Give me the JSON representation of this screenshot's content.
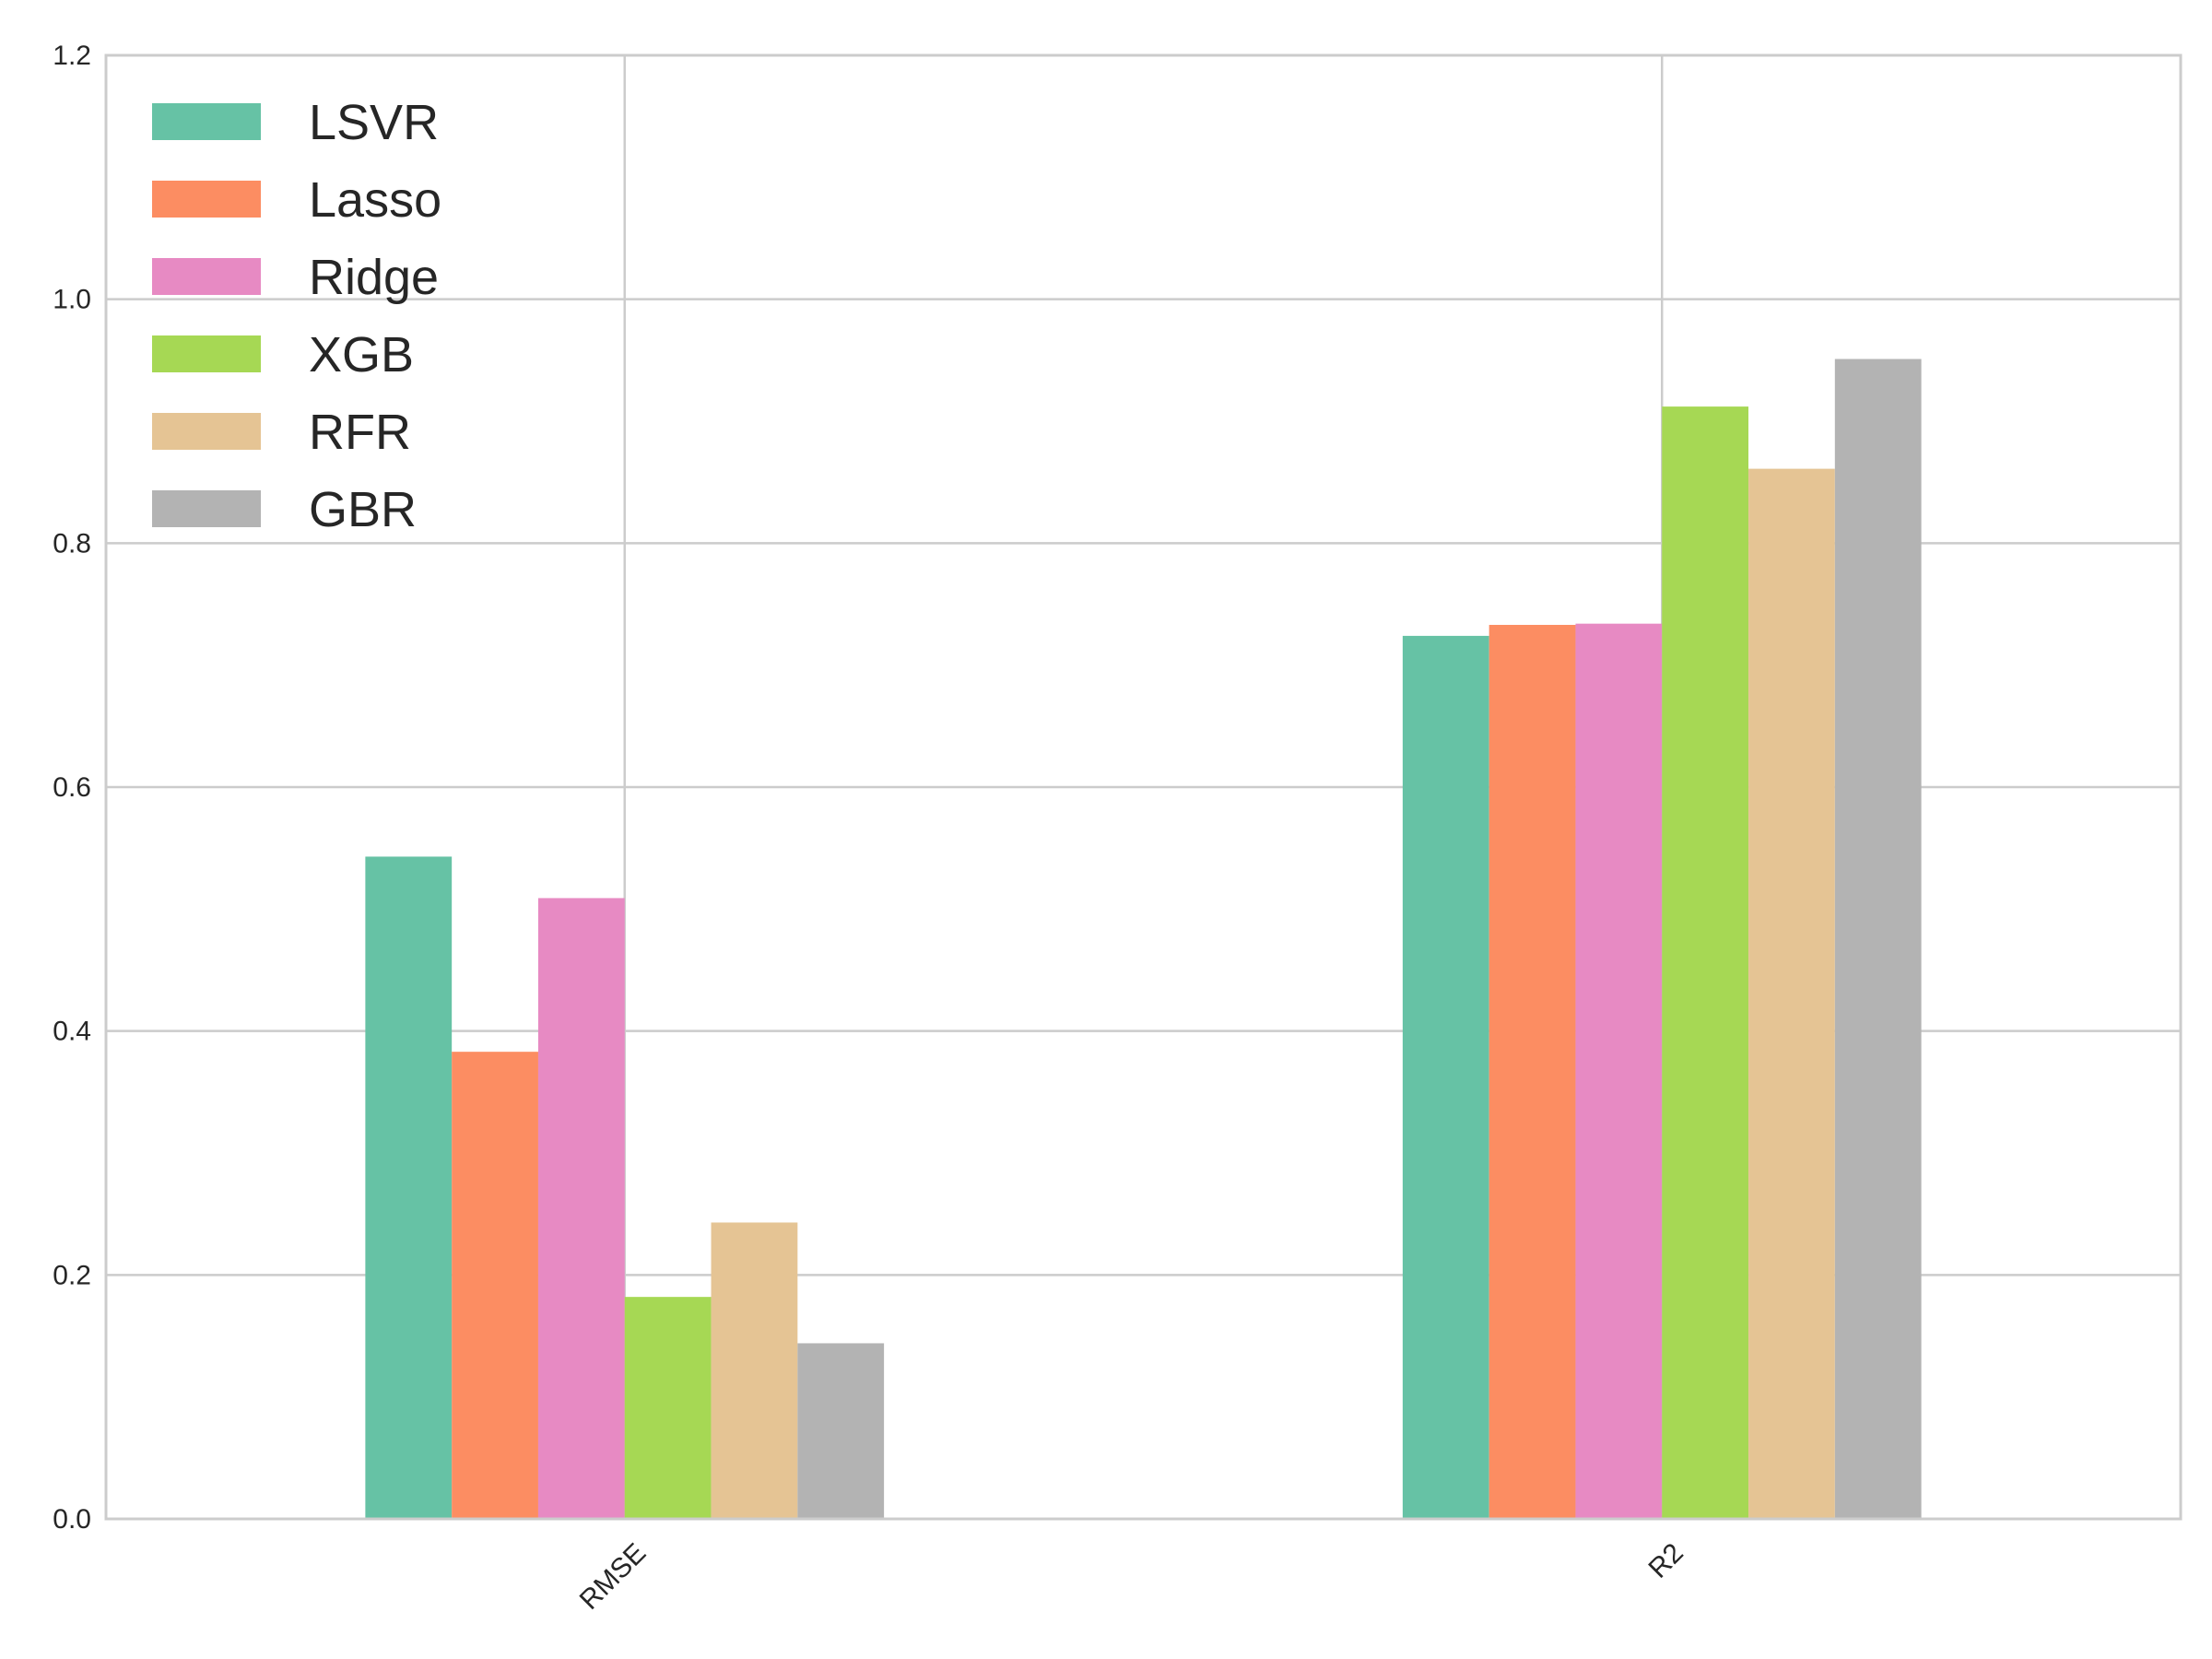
{
  "chart_data": {
    "type": "bar",
    "categories": [
      "RMSE",
      "R2"
    ],
    "series": [
      {
        "name": "LSVR",
        "color": "#66c2a5",
        "values": [
          0.543,
          0.724
        ]
      },
      {
        "name": "Lasso",
        "color": "#fc8d62",
        "values": [
          0.383,
          0.733
        ]
      },
      {
        "name": "Ridge",
        "color": "#e78ac3",
        "values": [
          0.509,
          0.734
        ]
      },
      {
        "name": "XGB",
        "color": "#a6d854",
        "values": [
          0.182,
          0.912
        ]
      },
      {
        "name": "RFR",
        "color": "#e5c494",
        "values": [
          0.243,
          0.861
        ]
      },
      {
        "name": "GBR",
        "color": "#b3b3b3",
        "values": [
          0.144,
          0.951
        ]
      }
    ],
    "y_ticks": [
      "0.0",
      "0.2",
      "0.4",
      "0.6",
      "0.8",
      "1.0",
      "1.2"
    ],
    "ylim": [
      0,
      1.2
    ],
    "grid": true,
    "legend_position": "top-left",
    "title": "",
    "xlabel": "",
    "ylabel": ""
  }
}
